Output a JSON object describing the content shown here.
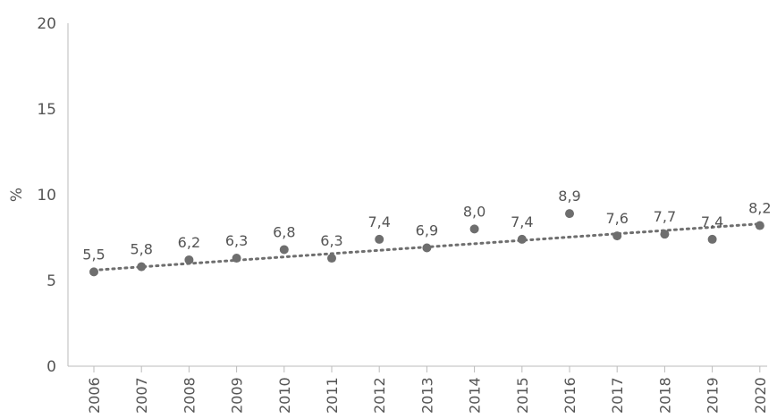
{
  "chart_data": {
    "type": "scatter",
    "ylabel": "%",
    "xlabel": "",
    "ylim": [
      0,
      20
    ],
    "yticks": [
      "0",
      "5",
      "10",
      "15",
      "20"
    ],
    "categories": [
      "2006",
      "2007",
      "2008",
      "2009",
      "2010",
      "2011",
      "2012",
      "2013",
      "2014",
      "2015",
      "2016",
      "2017",
      "2018",
      "2019",
      "2020"
    ],
    "series": [
      {
        "values": [
          5.5,
          5.8,
          6.2,
          6.3,
          6.8,
          6.3,
          7.4,
          6.9,
          8.0,
          7.4,
          8.9,
          7.6,
          7.7,
          7.4,
          8.2
        ],
        "labels": [
          "5,5",
          "5,8",
          "6,2",
          "6,3",
          "6,8",
          "6,3",
          "7,4",
          "6,9",
          "8,0",
          "7,4",
          "8,9",
          "7,6",
          "7,7",
          "7,4",
          "8,2"
        ]
      }
    ],
    "trendline": {
      "type": "linear",
      "style": "dotted",
      "start": 5.6,
      "end": 8.3
    },
    "grid": false,
    "colors": {
      "marker": "#6e6e6e",
      "trend": "#6e6e6e",
      "text": "#555555",
      "axis": "#bbbbbb"
    }
  }
}
